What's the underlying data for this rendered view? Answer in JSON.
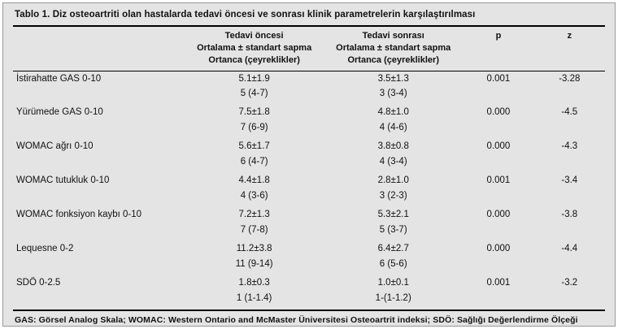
{
  "title": {
    "label": "Tablo 1.",
    "text": " Diz osteoartriti olan hastalarda tedavi öncesi ve sonrası klinik parametrelerin karşılaştırılması"
  },
  "table": {
    "columns": {
      "pre": [
        "Tedavi öncesi",
        "Ortalama ± standart sapma",
        "Ortanca (çeyreklikler)"
      ],
      "post": [
        "Tedavi sonrası",
        "Ortalama ± standart sapma",
        "Ortanca (çeyreklikler)"
      ],
      "p": "p",
      "z": "z"
    },
    "rows": [
      {
        "name": "İstirahatte GAS 0-10",
        "pre_mean": "5.1±1.9",
        "pre_median": "5 (4-7)",
        "post_mean": "3.5±1.3",
        "post_median": "3 (3-4)",
        "p": "0.001",
        "z": "-3.28"
      },
      {
        "name": "Yürümede GAS 0-10",
        "pre_mean": "7.5±1.8",
        "pre_median": "7 (6-9)",
        "post_mean": "4.8±1.0",
        "post_median": "4 (4-6)",
        "p": "0.000",
        "z": "-4.5"
      },
      {
        "name": "WOMAC ağrı 0-10",
        "pre_mean": "5.6±1.7",
        "pre_median": "6 (4-7)",
        "post_mean": "3.8±0.8",
        "post_median": "4 (3-4)",
        "p": "0.000",
        "z": "-4.3"
      },
      {
        "name": "WOMAC tutukluk 0-10",
        "pre_mean": "4.4±1.8",
        "pre_median": "4 (3-6)",
        "post_mean": "2.8±1.0",
        "post_median": "3 (2-3)",
        "p": "0.001",
        "z": "-3.4"
      },
      {
        "name": "WOMAC fonksiyon kaybı 0-10",
        "pre_mean": "7.2±1.3",
        "pre_median": "7 (7-8)",
        "post_mean": "5.3±2.1",
        "post_median": "5 (3-7)",
        "p": "0.000",
        "z": "-3.8"
      },
      {
        "name": "Lequesne 0-2",
        "pre_mean": "11.2±3.8",
        "pre_median": "11 (9-14)",
        "post_mean": "6.4±2.7",
        "post_median": "6 (5-6)",
        "p": "0.000",
        "z": "-4.4"
      },
      {
        "name": "SDÖ 0-2.5",
        "pre_mean": "1.8±0.3",
        "pre_median": "1 (1-1.4)",
        "post_mean": "1.0±0.1",
        "post_median": "1-(1-1.2)",
        "p": "0.001",
        "z": "-3.2"
      }
    ]
  },
  "footnote": "GAS: Görsel Analog Skala; WOMAC: Western Ontario and McMaster Üniversitesi Osteoartrit indeksi; SDÖ: Sağlığı Değerlendirme Ölçeği"
}
